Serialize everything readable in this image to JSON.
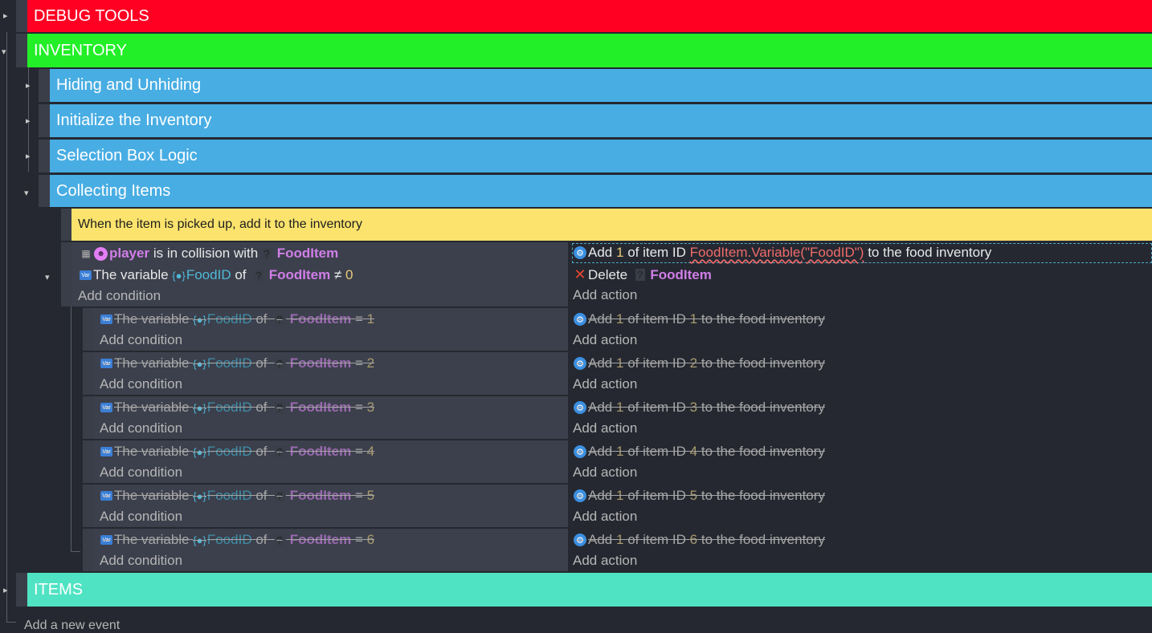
{
  "groups": {
    "debug": {
      "label": "DEBUG TOOLS",
      "color": "#ff0023"
    },
    "inventory": {
      "label": "INVENTORY",
      "color": "#22ef27"
    },
    "items": {
      "label": "ITEMS",
      "color": "#50e3c3"
    }
  },
  "subgroups": [
    {
      "label": "Hiding and Unhiding",
      "color": "#48ade3"
    },
    {
      "label": "Initialize the Inventory",
      "color": "#48ade3"
    },
    {
      "label": "Selection Box Logic",
      "color": "#48ade3"
    },
    {
      "label": "Collecting Items",
      "color": "#48ade3"
    }
  ],
  "comment": "When the item is picked up, add it to the inventory",
  "main_event": {
    "cond1": {
      "object": "player",
      "text": "is in collision with",
      "target": "FoodItem"
    },
    "cond2": {
      "prefix": "The variable",
      "variable": "FoodID",
      "of": "of",
      "object": "FoodItem",
      "op": "≠",
      "value": "0"
    },
    "add_condition": "Add condition",
    "action1": {
      "verb": "Add",
      "qty": "1",
      "mid": "of item ID",
      "expr": "FoodItem.Variable(\"FoodID\")",
      "suffix": "to the food inventory"
    },
    "action2": {
      "verb": "Delete",
      "object": "FoodItem"
    },
    "add_action": "Add action"
  },
  "sub_events": [
    {
      "prefix": "The variable",
      "variable": "FoodID",
      "of": "of",
      "object": "FoodItem",
      "op": "=",
      "value": "1",
      "a_verb": "Add",
      "a_qty": "1",
      "a_mid": "of item ID",
      "a_id": "1",
      "a_suffix": "to the food inventory",
      "add_condition": "Add condition",
      "add_action": "Add action"
    },
    {
      "prefix": "The variable",
      "variable": "FoodID",
      "of": "of",
      "object": "FoodItem",
      "op": "=",
      "value": "2",
      "a_verb": "Add",
      "a_qty": "1",
      "a_mid": "of item ID",
      "a_id": "2",
      "a_suffix": "to the food inventory",
      "add_condition": "Add condition",
      "add_action": "Add action"
    },
    {
      "prefix": "The variable",
      "variable": "FoodID",
      "of": "of",
      "object": "FoodItem",
      "op": "=",
      "value": "3",
      "a_verb": "Add",
      "a_qty": "1",
      "a_mid": "of item ID",
      "a_id": "3",
      "a_suffix": "to the food inventory",
      "add_condition": "Add condition",
      "add_action": "Add action"
    },
    {
      "prefix": "The variable",
      "variable": "FoodID",
      "of": "of",
      "object": "FoodItem",
      "op": "=",
      "value": "4",
      "a_verb": "Add",
      "a_qty": "1",
      "a_mid": "of item ID",
      "a_id": "4",
      "a_suffix": "to the food inventory",
      "add_condition": "Add condition",
      "add_action": "Add action"
    },
    {
      "prefix": "The variable",
      "variable": "FoodID",
      "of": "of",
      "object": "FoodItem",
      "op": "=",
      "value": "5",
      "a_verb": "Add",
      "a_qty": "1",
      "a_mid": "of item ID",
      "a_id": "5",
      "a_suffix": "to the food inventory",
      "add_condition": "Add condition",
      "add_action": "Add action"
    },
    {
      "prefix": "The variable",
      "variable": "FoodID",
      "of": "of",
      "object": "FoodItem",
      "op": "=",
      "value": "6",
      "a_verb": "Add",
      "a_qty": "1",
      "a_mid": "of item ID",
      "a_id": "6",
      "a_suffix": "to the food inventory",
      "add_condition": "Add condition",
      "add_action": "Add action"
    }
  ],
  "add_new_event": "Add a new event",
  "icons": {
    "var": "variable-icon",
    "gear": "extension-gear-icon",
    "face": "player-object-icon",
    "question": "unknown-object-icon",
    "delete": "delete-x-icon",
    "collision": "collision-icon",
    "expand": "expand-arrow-icon",
    "collapse": "collapse-arrow-icon"
  }
}
